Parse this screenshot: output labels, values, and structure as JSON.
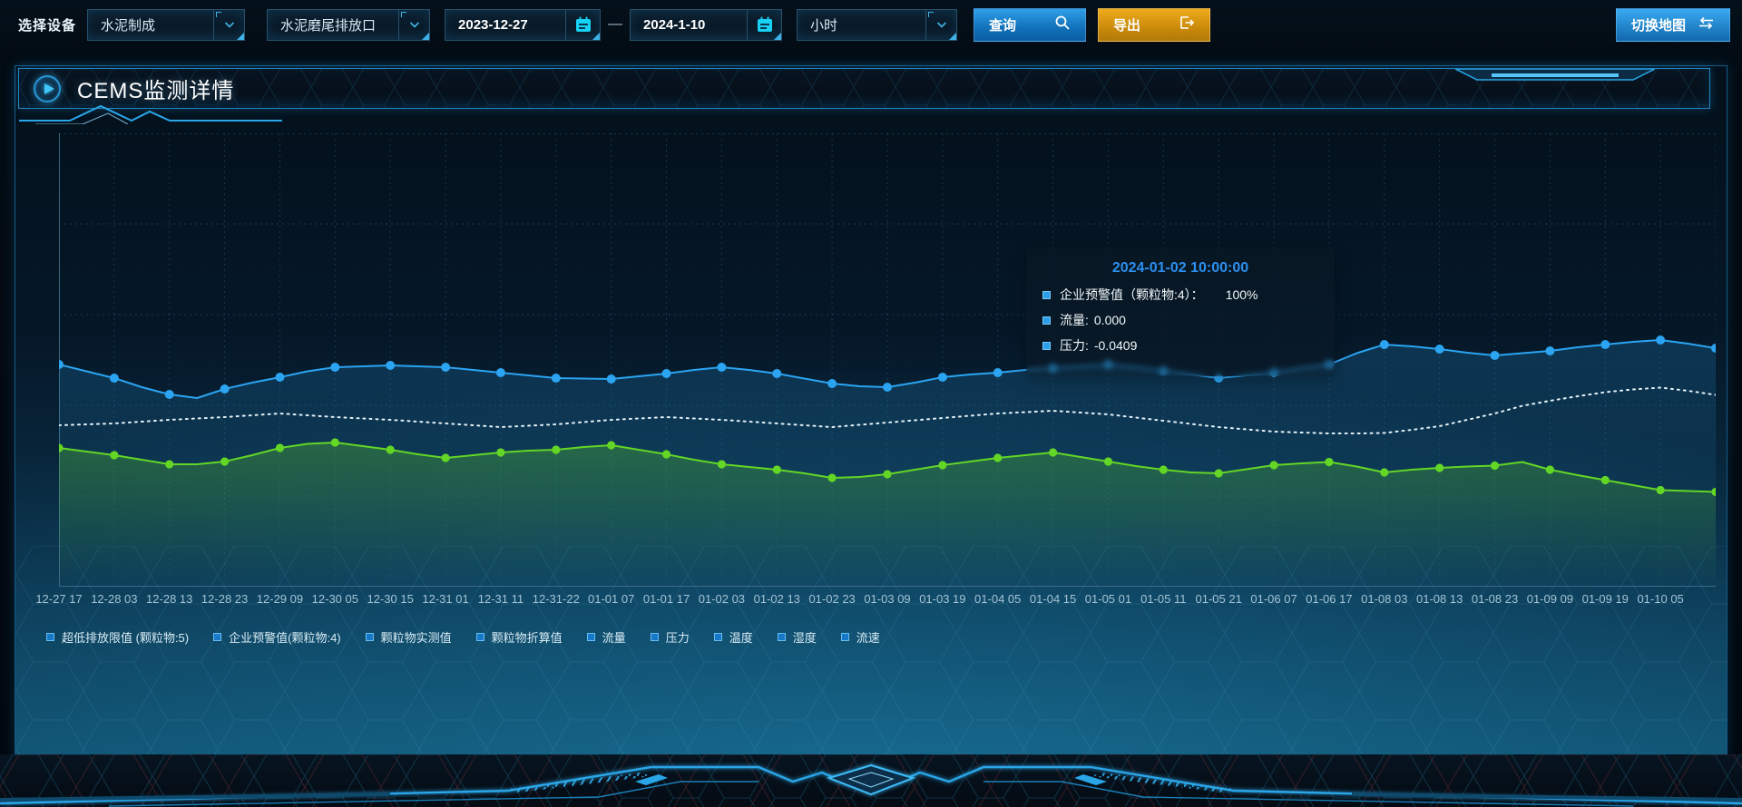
{
  "toolbar": {
    "label": "选择设备",
    "device_select": "水泥制成",
    "outlet_select": "水泥磨尾排放口",
    "date_start": "2023-12-27",
    "date_separator": "—",
    "date_end": "2024-1-10",
    "interval_select": "小时",
    "query_label": "查询",
    "export_label": "导出",
    "map_label": "切换地图"
  },
  "panel": {
    "title": "CEMS监测详情"
  },
  "tooltip": {
    "title": "2024-01-02 10:00:00",
    "marker_color": "#2d9fe8",
    "items": [
      {
        "label": "企业预警值（颗粒物:4）：",
        "value": "100%"
      },
      {
        "label": "流量:",
        "value": "0.000"
      },
      {
        "label": "压力:",
        "value": "-0.0409"
      }
    ]
  },
  "legend": [
    "超低排放限值 (颗粒物:5)",
    "企业预警值(颗粒物:4)",
    "颗粒物实测值",
    "颗粒物折算值",
    "流量",
    "压力",
    "温度",
    "湿度",
    "流速"
  ],
  "icons": {
    "chevron": "chevron-down-icon",
    "calendar": "calendar-icon",
    "search": "search-icon",
    "export": "export-arrow-icon",
    "swap": "swap-arrows-icon",
    "play": "play-icon"
  },
  "colors": {
    "accent": "#2aa6e8",
    "query_button": "#1f8ad8",
    "export_button": "#d8940f",
    "tooltip_title": "#2d8ff0"
  },
  "chart_data": {
    "type": "line",
    "title": "CEMS监测详情",
    "xlabel": "",
    "ylabel": "",
    "ylim": [
      0,
      100
    ],
    "grid": true,
    "legend_position": "bottom",
    "note": "No y-axis tick labels are visible; series values are percent of plot height estimated from pixels. 61 samples per series; x labels / dots / gridlines fall on every 2nd sample.",
    "labels_every": 2,
    "x_labels": [
      "12-27 17",
      "12-28 03",
      "12-28 13",
      "12-28 23",
      "12-29 09",
      "12-30 05",
      "12-30 15",
      "12-31 01",
      "12-31 11",
      "12-31-22",
      "01-01 07",
      "01-01 17",
      "01-02 03",
      "01-02 13",
      "01-02 23",
      "01-03 09",
      "01-03 19",
      "01-04 05",
      "01-04 15",
      "01-05 01",
      "01-05 11",
      "01-05 21",
      "01-06 07",
      "01-06 17",
      "01-08 03",
      "01-08 13",
      "01-08 23",
      "01-09 09",
      "01-09 19",
      "01-10 05"
    ],
    "series": [
      {
        "name": "企业预警值(颗粒物:4)",
        "color": "#2ba4f2",
        "line": "solid",
        "dots": true,
        "dot_r": 5,
        "area": true,
        "area_color": "#2ba4f2",
        "values": [
          49,
          47.5,
          46,
          44,
          42.4,
          41.6,
          43.6,
          45,
          46.2,
          47.5,
          48.4,
          48.6,
          48.8,
          48.6,
          48.4,
          47.8,
          47.2,
          46.6,
          46,
          45.9,
          45.8,
          46.4,
          47,
          47.8,
          48.4,
          47.8,
          47,
          45.9,
          44.8,
          44.2,
          44,
          45,
          46.2,
          46.8,
          47.2,
          47.8,
          48.2,
          48.6,
          49,
          48.4,
          47.6,
          46.8,
          46,
          46.6,
          47.2,
          48.2,
          49,
          51.5,
          53.4,
          53,
          52.4,
          51.6,
          51,
          51.5,
          52,
          52.8,
          53.4,
          54,
          54.4,
          53.6,
          52.6
        ]
      },
      {
        "name": "流量",
        "color": "#e3f1f7",
        "line": "dotted",
        "dots": false,
        "dot_r": 0,
        "area": false,
        "area_color": "",
        "values": [
          35.6,
          35.8,
          36,
          36.4,
          36.8,
          37.1,
          37.4,
          37.8,
          38.2,
          37.8,
          37.4,
          37.1,
          36.8,
          36.4,
          36,
          35.6,
          35.2,
          35.5,
          35.8,
          36.3,
          36.8,
          37.1,
          37.4,
          37.1,
          36.8,
          36.4,
          36,
          35.6,
          35.2,
          35.7,
          36.2,
          36.7,
          37.2,
          37.7,
          38.2,
          38.5,
          38.8,
          38.4,
          38,
          37.3,
          36.6,
          35.9,
          35.2,
          34.7,
          34.2,
          34,
          33.8,
          33.8,
          33.9,
          34.6,
          35.4,
          36.8,
          38.2,
          39.9,
          41,
          42,
          42.9,
          43.5,
          43.9,
          43.2,
          42.3
        ]
      },
      {
        "name": "压力",
        "color": "#63d626",
        "line": "solid",
        "dots": true,
        "dot_r": 4.6,
        "area": true,
        "area_color": "#63d626",
        "values": [
          30.6,
          29.8,
          29,
          28,
          27,
          27,
          27.6,
          29,
          30.6,
          31.5,
          31.8,
          31,
          30.2,
          29.2,
          28.4,
          29,
          29.6,
          30,
          30.2,
          30.8,
          31.2,
          30.2,
          29.2,
          28,
          27,
          26.4,
          25.8,
          25,
          24,
          24.2,
          24.8,
          25.8,
          26.8,
          27.6,
          28.4,
          29,
          29.6,
          28.6,
          27.6,
          26.6,
          25.8,
          25.2,
          25,
          25.9,
          26.8,
          27.2,
          27.5,
          26.5,
          25.2,
          25.8,
          26.2,
          26.5,
          26.7,
          27.5,
          25.8,
          24.6,
          23.5,
          22.4,
          21.3,
          21.1,
          20.9
        ]
      }
    ]
  }
}
